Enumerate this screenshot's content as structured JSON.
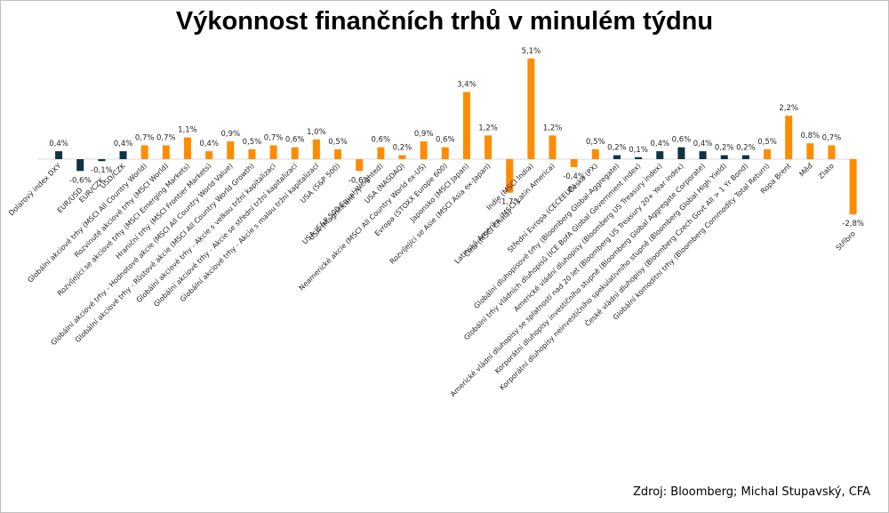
{
  "title": "Výkonnost finančních trhů v minulém týdnu",
  "source": "Zdroj: Bloomberg; Michal Stupavský, CFA",
  "colors": {
    "dark": "#0f3342",
    "orange": "#ff8c00",
    "axis": "#d9d9d9",
    "text": "#262626"
  },
  "chart_data": {
    "type": "bar",
    "ylabel": "",
    "xlabel": "",
    "ylim": [
      -3,
      5.3
    ],
    "categories": [
      "Dolarový index DXY",
      "EUR/USD",
      "EUR/CZK",
      "USD/CZK",
      "Globální akciové trhy (MSCI All Country World)",
      "Rozvinuté akciové trhy (MSCI World)",
      "Rozvíjející se akciové trhy (MSCI Emerging Markets)",
      "Hraniční trhy (MSCI Frontier Markets)",
      "Globální akciové trhy - Hodnotové akcie (MSCI All Country World Value)",
      "Globální akciové trhy - Růstové akcie (MSCI All Country World Growth)",
      "Globální akciové trhy - Akcie s velkou tržní kapitalizací",
      "Globální akciové trhy - Akcie se střední tržní kapitalizací",
      "Globální akciové trhy - Akcie s malou tržní kapitalizací",
      "USA (S&P 500)",
      "USA (Magnificent 7)",
      "USA (S&P 500 Equal Weighted)",
      "USA (NASDAQ)",
      "Neamerické akcie (MSCI All Country World ex-US)",
      "Evropa (STOXX Europe 600)",
      "Japonsko (MSCI Japan)",
      "Rozvíjející se Asie (MSCI Asia ex-Japan)",
      "Čína (MSCI China)",
      "Indie (MSCI India)",
      "Latinská Amerika (MSCI Latin America)",
      "Střední Evropa (CECEEUR)",
      "Česko (PX)",
      "Globální dluhopisové trhy (Bloomberg Global-Aggregate)",
      "Globální trhy vládních dluhopisů (ICE BofA Global Government index)",
      "Americké vládní dluhopisy (Bloomberg US Treasury index)",
      "Americké vládní dluhopisy se splatností nad 20 let (Bloomberg US Treasury 20+ Year index)",
      "Korporátní dluhopisy investičního stupně (Bloomberg Global Aggregate Corporate)",
      "Korporátní dluhopisy neinvestičního spekulativního stupně (Bloomberg Global High Yield)",
      "České vládní dluhopisy (Bloomberg Czech Govt All > 1 Yr Bond)",
      "Globální komoditní trhy (Bloomberg Commodity Total Return)",
      "Ropa Brent",
      "Měď",
      "Zlato",
      "Stříbro"
    ],
    "values": [
      0.4,
      -0.6,
      -0.1,
      0.4,
      0.7,
      0.7,
      1.1,
      0.4,
      0.9,
      0.5,
      0.7,
      0.6,
      1.0,
      0.5,
      -0.6,
      0.6,
      0.2,
      0.9,
      0.6,
      3.4,
      1.2,
      -1.7,
      5.1,
      1.2,
      -0.4,
      0.5,
      0.2,
      0.1,
      0.4,
      0.6,
      0.4,
      0.2,
      0.2,
      0.5,
      2.2,
      0.8,
      0.7,
      -2.8
    ],
    "data_labels": [
      "0,4%",
      "-0,6%",
      "-0,1%",
      "0,4%",
      "0,7%",
      "0,7%",
      "1,1%",
      "0,4%",
      "0,9%",
      "0,5%",
      "0,7%",
      "0,6%",
      "1,0%",
      "0,5%",
      "-0,6%",
      "0,6%",
      "0,2%",
      "0,9%",
      "0,6%",
      "3,4%",
      "1,2%",
      "-1,7%",
      "5,1%",
      "1,2%",
      "-0,4%",
      "0,5%",
      "0,2%",
      "0,1%",
      "0,4%",
      "0,6%",
      "0,4%",
      "0,2%",
      "0,2%",
      "0,5%",
      "2,2%",
      "0,8%",
      "0,7%",
      "-2,8%"
    ],
    "bar_colors": [
      "dark",
      "dark",
      "dark",
      "dark",
      "orange",
      "orange",
      "orange",
      "orange",
      "orange",
      "orange",
      "orange",
      "orange",
      "orange",
      "orange",
      "orange",
      "orange",
      "orange",
      "orange",
      "orange",
      "orange",
      "orange",
      "orange",
      "orange",
      "orange",
      "orange",
      "orange",
      "dark",
      "dark",
      "dark",
      "dark",
      "dark",
      "dark",
      "dark",
      "orange",
      "orange",
      "orange",
      "orange",
      "orange"
    ]
  }
}
